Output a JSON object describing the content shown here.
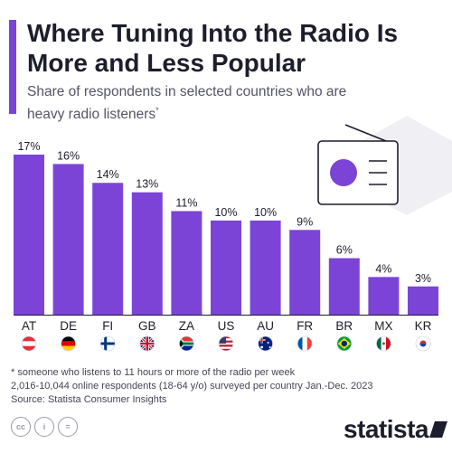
{
  "header": {
    "title": "Where Tuning Into the Radio Is More and Less Popular",
    "subtitle": "Share of respondents in selected countries who are heavy radio listeners",
    "subtitle_mark": "*"
  },
  "colors": {
    "bar": "#7b44d6",
    "accent": "#7b44d6",
    "text": "#1d1d2c"
  },
  "illustration": {
    "icon": "radio-icon"
  },
  "chart_data": {
    "type": "bar",
    "categories": [
      "AT",
      "DE",
      "FI",
      "GB",
      "ZA",
      "US",
      "AU",
      "FR",
      "BR",
      "MX",
      "KR"
    ],
    "values": [
      17,
      16,
      14,
      13,
      11,
      10,
      10,
      9,
      6,
      4,
      3
    ],
    "value_labels": [
      "17%",
      "16%",
      "14%",
      "13%",
      "11%",
      "10%",
      "10%",
      "9%",
      "6%",
      "4%",
      "3%"
    ],
    "flags": [
      "flag-austria-icon",
      "flag-germany-icon",
      "flag-finland-icon",
      "flag-uk-icon",
      "flag-south-africa-icon",
      "flag-usa-icon",
      "flag-australia-icon",
      "flag-france-icon",
      "flag-brazil-icon",
      "flag-mexico-icon",
      "flag-south-korea-icon"
    ],
    "ylim": [
      0,
      17
    ],
    "grid": false,
    "legend": "none",
    "color": "#7b44d6"
  },
  "footer": {
    "note": "* someone who listens to 11 hours or more of the radio per week",
    "sample": "2,016-10,044 online respondents (18-64 y/o) surveyed per country Jan.-Dec. 2023",
    "source": "Source: Statista Consumer Insights",
    "brand": "statista"
  }
}
